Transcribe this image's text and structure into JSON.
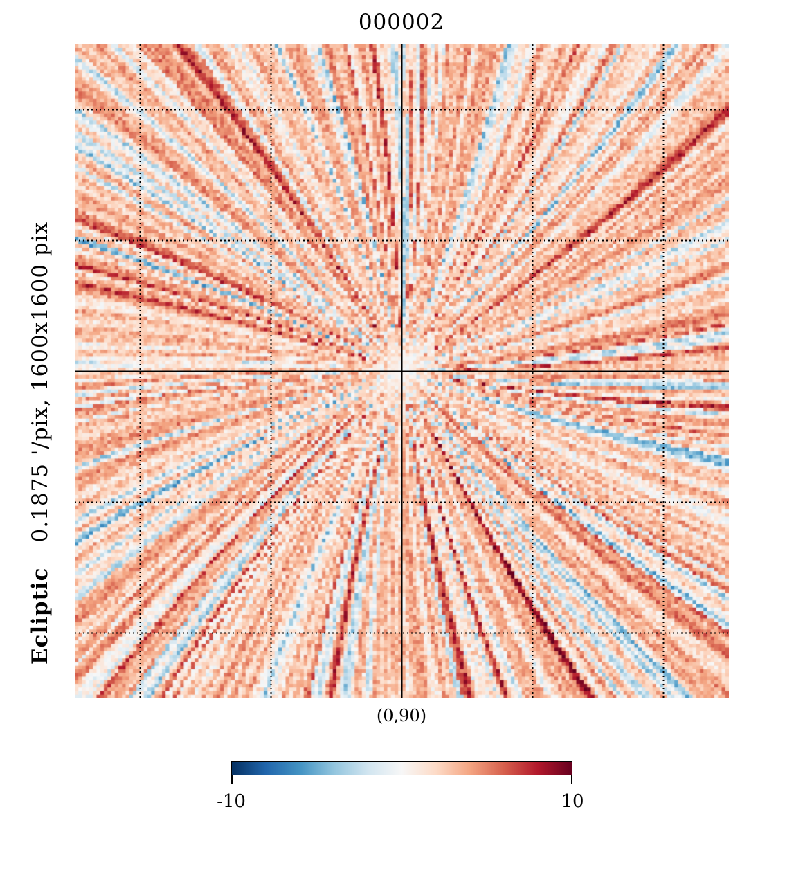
{
  "title": "000002",
  "projection_label": "(0,90)",
  "side_text": {
    "coord": "Ecliptic",
    "resolution": "0.1875 '/pix,  1600x1600 pix"
  },
  "colorbar": {
    "min_label": "-10",
    "max_label": "10",
    "cmap": "RdBu_r",
    "stops": [
      "#053061",
      "#2166ac",
      "#4393c3",
      "#92c5de",
      "#d1e5f0",
      "#f7f7f7",
      "#fddbc7",
      "#f4a582",
      "#d6604d",
      "#b2182b",
      "#67001f"
    ]
  },
  "chart_data": {
    "type": "heatmap",
    "title": "000002",
    "projection": "gnomonic",
    "center": "(0,90)",
    "coord": "Ecliptic",
    "resolution_arcmin_per_pix": 0.1875,
    "pixels": [
      1600,
      1600
    ],
    "vmin": -10,
    "vmax": 10,
    "grid": true,
    "grid_style": "dotted",
    "pattern": "radial streaks converging at map center"
  }
}
